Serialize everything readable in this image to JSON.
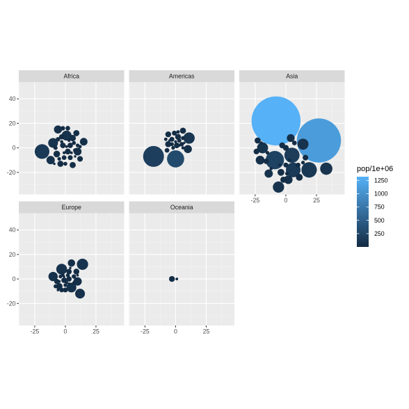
{
  "chart_data": {
    "type": "scatter",
    "encoding": "bubble (packed circles) sized and colored by pop/1e+06, faceted by continent",
    "xlim": [
      -38,
      48
    ],
    "ylim": [
      -38,
      48
    ],
    "x_ticks": [
      -25,
      0,
      25
    ],
    "y_ticks": [
      -20,
      0,
      20,
      40
    ],
    "x_tick_labels": [
      "-25",
      "0",
      "25"
    ],
    "y_tick_labels": [
      "-20",
      "0",
      "20",
      "40"
    ],
    "grid": true,
    "legend": {
      "title": "pop/1e+06",
      "placement": "right",
      "labels": [
        "1250",
        "1000",
        "750",
        "500",
        "250"
      ],
      "values": [
        1250,
        1000,
        750,
        500,
        250
      ],
      "color_range": [
        0,
        1320
      ],
      "color_low": "#132B43",
      "color_high": "#56B1F7"
    },
    "facets": [
      {
        "name": "Africa",
        "points": [
          {
            "x": -19,
            "y": -3,
            "r": 6,
            "pop": 140
          },
          {
            "x": -10,
            "y": 4,
            "r": 4,
            "pop": 80
          },
          {
            "x": -12,
            "y": -10,
            "r": 3.4,
            "pop": 60
          },
          {
            "x": 1,
            "y": 10,
            "r": 4.1,
            "pop": 80
          },
          {
            "x": -6,
            "y": 15,
            "r": 3.3,
            "pop": 50
          },
          {
            "x": 15,
            "y": 5,
            "r": 3.1,
            "pop": 45
          },
          {
            "x": 10,
            "y": -3,
            "r": 3.2,
            "pop": 40
          },
          {
            "x": 6,
            "y": 8,
            "r": 2.6,
            "pop": 35
          },
          {
            "x": 9,
            "y": 12,
            "r": 2.5,
            "pop": 35
          },
          {
            "x": -7,
            "y": -5,
            "r": 2.7,
            "pop": 30
          },
          {
            "x": -4,
            "y": -13,
            "r": 2.5,
            "pop": 30
          },
          {
            "x": 6,
            "y": -14,
            "r": 2.5,
            "pop": 30
          },
          {
            "x": 2,
            "y": -3,
            "r": 2.4,
            "pop": 25
          },
          {
            "x": -2,
            "y": 2,
            "r": 2.3,
            "pop": 25
          },
          {
            "x": 4,
            "y": 2,
            "r": 2.2,
            "pop": 20
          },
          {
            "x": 12,
            "y": -9,
            "r": 2.3,
            "pop": 20
          },
          {
            "x": -3,
            "y": 9,
            "r": 2.1,
            "pop": 20
          },
          {
            "x": 4,
            "y": -8,
            "r": 2.0,
            "pop": 18
          },
          {
            "x": -1,
            "y": -8,
            "r": 1.9,
            "pop": 15
          },
          {
            "x": 2,
            "y": 16,
            "r": 1.9,
            "pop": 15
          },
          {
            "x": -2,
            "y": 16,
            "r": 1.8,
            "pop": 12
          },
          {
            "x": -6,
            "y": 7,
            "r": 1.8,
            "pop": 12
          },
          {
            "x": -8,
            "y": 0,
            "r": 1.7,
            "pop": 10
          },
          {
            "x": 8,
            "y": -2,
            "r": 1.7,
            "pop": 10
          },
          {
            "x": 7,
            "y": 4,
            "r": 1.6,
            "pop": 10
          },
          {
            "x": 0,
            "y": -13,
            "r": 1.6,
            "pop": 8
          },
          {
            "x": -5,
            "y": -9,
            "r": 1.5,
            "pop": 8
          },
          {
            "x": 10,
            "y": 2,
            "r": 1.5,
            "pop": 6
          },
          {
            "x": 12,
            "y": 1,
            "r": 1.4,
            "pop": 5
          },
          {
            "x": -3,
            "y": 5,
            "r": 1.3,
            "pop": 4
          },
          {
            "x": 3,
            "y": 6,
            "r": 1.2,
            "pop": 3
          },
          {
            "x": -1,
            "y": -4,
            "r": 1.2,
            "pop": 3
          },
          {
            "x": 5,
            "y": -4,
            "r": 1.1,
            "pop": 2
          },
          {
            "x": 1,
            "y": 1,
            "r": 1.1,
            "pop": 2
          },
          {
            "x": 8,
            "y": -7,
            "r": 1.0,
            "pop": 2
          },
          {
            "x": -9,
            "y": -13,
            "r": 1.0,
            "pop": 1.5
          }
        ]
      },
      {
        "name": "Americas",
        "points": [
          {
            "x": -18,
            "y": -7,
            "r": 8.5,
            "pop": 190
          },
          {
            "x": 0,
            "y": -9,
            "r": 7,
            "pop": 301
          },
          {
            "x": 11,
            "y": 8,
            "r": 4.6,
            "pop": 108
          },
          {
            "x": 10,
            "y": -1,
            "r": 3.3,
            "pop": 44
          },
          {
            "x": 6,
            "y": 14,
            "r": 2.5,
            "pop": 33
          },
          {
            "x": -6,
            "y": 11,
            "r": 2.4,
            "pop": 29
          },
          {
            "x": -6,
            "y": 3,
            "r": 2.5,
            "pop": 28
          },
          {
            "x": 2,
            "y": 9,
            "r": 2.4,
            "pop": 25
          },
          {
            "x": 1,
            "y": 2,
            "r": 2.3,
            "pop": 16
          },
          {
            "x": -1,
            "y": 12,
            "r": 2.0,
            "pop": 14
          },
          {
            "x": -3,
            "y": 7,
            "r": 2.0,
            "pop": 13
          },
          {
            "x": -7,
            "y": -2,
            "r": 1.9,
            "pop": 12
          },
          {
            "x": 5,
            "y": 3,
            "r": 1.8,
            "pop": 11
          },
          {
            "x": 3,
            "y": 6,
            "r": 1.7,
            "pop": 9
          },
          {
            "x": 6,
            "y": 8,
            "r": 1.6,
            "pop": 9
          },
          {
            "x": -3,
            "y": 3,
            "r": 1.6,
            "pop": 8
          },
          {
            "x": -2,
            "y": 0,
            "r": 1.5,
            "pop": 7
          },
          {
            "x": 2,
            "y": 13,
            "r": 1.4,
            "pop": 6
          },
          {
            "x": -8,
            "y": 7,
            "r": 1.4,
            "pop": 5
          },
          {
            "x": 6,
            "y": 0,
            "r": 1.3,
            "pop": 4
          },
          {
            "x": 0,
            "y": 5,
            "r": 1.2,
            "pop": 4
          },
          {
            "x": 3,
            "y": 2,
            "r": 1.1,
            "pop": 3
          },
          {
            "x": -5,
            "y": 6,
            "r": 1.0,
            "pop": 3
          },
          {
            "x": 7,
            "y": 4,
            "r": 1.0,
            "pop": 1
          }
        ]
      },
      {
        "name": "Asia",
        "points": [
          {
            "x": -8,
            "y": 22,
            "r": 20,
            "pop": 1319
          },
          {
            "x": 27,
            "y": 6,
            "r": 18,
            "pop": 1110
          },
          {
            "x": -9,
            "y": -10,
            "r": 7.5,
            "pop": 223
          },
          {
            "x": 5,
            "y": -6,
            "r": 6.2,
            "pop": 169
          },
          {
            "x": 6,
            "y": -18,
            "r": 6,
            "pop": 150
          },
          {
            "x": 19,
            "y": -18,
            "r": 6.3,
            "pop": 127
          },
          {
            "x": 33,
            "y": -17,
            "r": 5,
            "pop": 91
          },
          {
            "x": -19,
            "y": 0,
            "r": 4.5,
            "pop": 85
          },
          {
            "x": -6,
            "y": -32,
            "r": 4.6,
            "pop": 80
          },
          {
            "x": 14,
            "y": 3,
            "r": 4.5,
            "pop": 75
          },
          {
            "x": -14,
            "y": -21,
            "r": 3.4,
            "pop": 65
          },
          {
            "x": -21,
            "y": -10,
            "r": 3.6,
            "pop": 50
          },
          {
            "x": 2,
            "y": -26,
            "r": 3.5,
            "pop": 48
          },
          {
            "x": 4,
            "y": 8,
            "r": 3.2,
            "pop": 40
          },
          {
            "x": -23,
            "y": 6,
            "r": 2.5,
            "pop": 30
          },
          {
            "x": 11,
            "y": -24,
            "r": 2.8,
            "pop": 28
          },
          {
            "x": -4,
            "y": -20,
            "r": 2.8,
            "pop": 27
          },
          {
            "x": -2,
            "y": -26,
            "r": 2.5,
            "pop": 25
          },
          {
            "x": 0,
            "y": 0,
            "r": 2.4,
            "pop": 24
          },
          {
            "x": 16,
            "y": -8,
            "r": 2.3,
            "pop": 23
          },
          {
            "x": -3,
            "y": 2,
            "r": 2.4,
            "pop": 22
          },
          {
            "x": -16,
            "y": -11,
            "r": 2.2,
            "pop": 18
          },
          {
            "x": -24,
            "y": -3,
            "r": 2.3,
            "pop": 16
          },
          {
            "x": 7,
            "y": 4,
            "r": 1.9,
            "pop": 14
          },
          {
            "x": 0,
            "y": -14,
            "r": 2.0,
            "pop": 12
          },
          {
            "x": 10,
            "y": -14,
            "r": 1.9,
            "pop": 11
          },
          {
            "x": 1,
            "y": -21,
            "r": 1.6,
            "pop": 8
          },
          {
            "x": -15,
            "y": -4,
            "r": 1.5,
            "pop": 7
          },
          {
            "x": 14,
            "y": -12,
            "r": 1.5,
            "pop": 6
          },
          {
            "x": 3,
            "y": -10,
            "r": 1.4,
            "pop": 5
          },
          {
            "x": -20,
            "y": 4,
            "r": 1.3,
            "pop": 4
          },
          {
            "x": -12,
            "y": -17,
            "r": 1.3,
            "pop": 4
          },
          {
            "x": -5,
            "y": -14,
            "r": 1.2,
            "pop": 3
          }
        ]
      },
      {
        "name": "Europe",
        "points": [
          {
            "x": 14,
            "y": 12,
            "r": 4.6,
            "pop": 82
          },
          {
            "x": -3,
            "y": 8,
            "r": 4.4,
            "pop": 71
          },
          {
            "x": 12,
            "y": -12,
            "r": 4,
            "pop": 64
          },
          {
            "x": 5,
            "y": -7,
            "r": 4,
            "pop": 61
          },
          {
            "x": -10,
            "y": 2,
            "r": 3.8,
            "pop": 59
          },
          {
            "x": 10,
            "y": -2,
            "r": 3.4,
            "pop": 40
          },
          {
            "x": 5,
            "y": 13,
            "r": 3,
            "pop": 38
          },
          {
            "x": -5,
            "y": -6,
            "r": 2.7,
            "pop": 22
          },
          {
            "x": 9,
            "y": 6,
            "r": 2.4,
            "pop": 16
          },
          {
            "x": -1,
            "y": -1,
            "r": 2.3,
            "pop": 11
          },
          {
            "x": 3,
            "y": 6,
            "r": 2.2,
            "pop": 10
          },
          {
            "x": 3,
            "y": 0,
            "r": 2.2,
            "pop": 10
          },
          {
            "x": -7,
            "y": -2,
            "r": 2.1,
            "pop": 10
          },
          {
            "x": 0,
            "y": -9,
            "r": 2,
            "pop": 9
          },
          {
            "x": -3,
            "y": -9,
            "r": 1.9,
            "pop": 8
          },
          {
            "x": 7,
            "y": 2,
            "r": 1.8,
            "pop": 7
          },
          {
            "x": 2,
            "y": 3,
            "r": 1.6,
            "pop": 5
          },
          {
            "x": -8,
            "y": -6,
            "r": 1.6,
            "pop": 5
          },
          {
            "x": -4,
            "y": 2,
            "r": 1.5,
            "pop": 5
          },
          {
            "x": 0,
            "y": -5,
            "r": 1.5,
            "pop": 4
          },
          {
            "x": -2,
            "y": 3,
            "r": 1.4,
            "pop": 4
          },
          {
            "x": 7,
            "y": -3,
            "r": 1.3,
            "pop": 4
          },
          {
            "x": 1,
            "y": -3,
            "r": 1.3,
            "pop": 3
          },
          {
            "x": -5,
            "y": -2,
            "r": 1.2,
            "pop": 2
          },
          {
            "x": 3,
            "y": -4,
            "r": 1.1,
            "pop": 2
          },
          {
            "x": -6,
            "y": -9,
            "r": 1.1,
            "pop": 2
          },
          {
            "x": 4,
            "y": 9,
            "r": 1.0,
            "pop": 1
          },
          {
            "x": 10,
            "y": 3,
            "r": 1.0,
            "pop": 1
          },
          {
            "x": -1,
            "y": 2,
            "r": 0.9,
            "pop": 0.3
          },
          {
            "x": 2,
            "y": -1,
            "r": 0.9,
            "pop": 0.3
          }
        ]
      },
      {
        "name": "Oceania",
        "points": [
          {
            "x": -3,
            "y": 0,
            "r": 2.4,
            "pop": 20
          },
          {
            "x": 1,
            "y": 0,
            "r": 1.1,
            "pop": 4
          }
        ]
      }
    ]
  }
}
